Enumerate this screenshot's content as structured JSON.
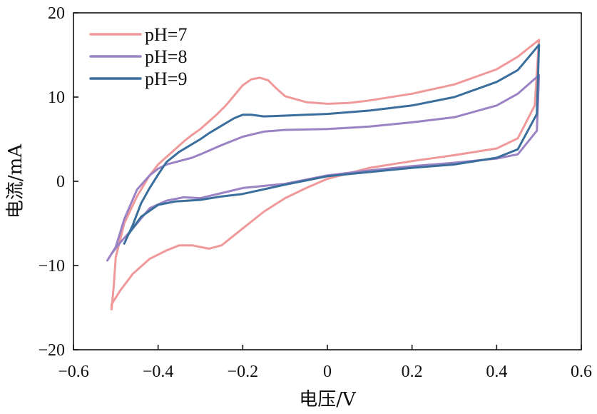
{
  "chart_data": {
    "type": "line",
    "xlabel": "电压/V",
    "ylabel": "电流/mA",
    "xlim": [
      -0.6,
      0.6
    ],
    "ylim": [
      -20,
      20
    ],
    "xticks": [
      -0.6,
      -0.4,
      -0.2,
      0,
      0.2,
      0.4,
      0.6
    ],
    "xtick_labels": [
      "−0.6",
      "−0.4",
      "−0.2",
      "0",
      "0.2",
      "0.4",
      "0.6"
    ],
    "yticks": [
      -20,
      -10,
      0,
      10,
      20
    ],
    "ytick_labels": [
      "−20",
      "−10",
      "0",
      "10",
      "20"
    ],
    "grid": false,
    "legend_position": "top-left",
    "series": [
      {
        "name": "pH=7",
        "color": "#F0999A",
        "x": [
          -0.51,
          -0.505,
          -0.5,
          -0.48,
          -0.45,
          -0.42,
          -0.4,
          -0.38,
          -0.36,
          -0.34,
          -0.32,
          -0.3,
          -0.28,
          -0.26,
          -0.24,
          -0.22,
          -0.2,
          -0.18,
          -0.16,
          -0.14,
          -0.12,
          -0.1,
          -0.05,
          0.0,
          0.05,
          0.1,
          0.2,
          0.3,
          0.4,
          0.45,
          0.5,
          0.49,
          0.45,
          0.4,
          0.3,
          0.2,
          0.1,
          0.0,
          -0.05,
          -0.1,
          -0.15,
          -0.2,
          -0.25,
          -0.28,
          -0.3,
          -0.32,
          -0.35,
          -0.38,
          -0.42,
          -0.46,
          -0.49,
          -0.51,
          -0.51
        ],
        "y": [
          -15.2,
          -12.5,
          -9.0,
          -5.0,
          -1.8,
          0.7,
          2.0,
          2.9,
          3.8,
          4.7,
          5.5,
          6.2,
          7.1,
          8.0,
          9.0,
          10.2,
          11.4,
          12.1,
          12.3,
          12.0,
          11.0,
          10.1,
          9.4,
          9.2,
          9.3,
          9.6,
          10.4,
          11.5,
          13.3,
          14.8,
          16.8,
          9.0,
          5.1,
          3.9,
          3.1,
          2.4,
          1.6,
          0.3,
          -0.8,
          -2.0,
          -3.6,
          -5.6,
          -7.6,
          -8.0,
          -7.8,
          -7.6,
          -7.6,
          -8.2,
          -9.2,
          -11.0,
          -13.0,
          -14.6,
          -15.2
        ]
      },
      {
        "name": "pH=8",
        "color": "#9A82C4",
        "x": [
          -0.52,
          -0.5,
          -0.48,
          -0.45,
          -0.42,
          -0.4,
          -0.38,
          -0.35,
          -0.32,
          -0.3,
          -0.25,
          -0.2,
          -0.15,
          -0.1,
          0.0,
          0.1,
          0.2,
          0.3,
          0.4,
          0.45,
          0.5,
          0.495,
          0.45,
          0.4,
          0.3,
          0.2,
          0.1,
          0.0,
          -0.1,
          -0.2,
          -0.25,
          -0.3,
          -0.34,
          -0.38,
          -0.42,
          -0.46,
          -0.49,
          -0.51,
          -0.52
        ],
        "y": [
          -9.4,
          -7.8,
          -4.5,
          -1.0,
          0.7,
          1.5,
          2.0,
          2.4,
          2.8,
          3.2,
          4.3,
          5.3,
          5.9,
          6.1,
          6.2,
          6.5,
          7.0,
          7.6,
          9.0,
          10.4,
          12.6,
          6.0,
          3.2,
          2.7,
          2.2,
          1.8,
          1.3,
          0.7,
          -0.3,
          -0.8,
          -1.4,
          -2.0,
          -1.9,
          -2.3,
          -3.2,
          -5.6,
          -7.3,
          -8.6,
          -9.4
        ]
      },
      {
        "name": "pH=9",
        "color": "#3A6E9C",
        "x": [
          -0.48,
          -0.46,
          -0.44,
          -0.42,
          -0.4,
          -0.38,
          -0.35,
          -0.32,
          -0.3,
          -0.28,
          -0.25,
          -0.22,
          -0.2,
          -0.18,
          -0.15,
          -0.1,
          -0.05,
          0.0,
          0.1,
          0.2,
          0.3,
          0.4,
          0.45,
          0.5,
          0.495,
          0.45,
          0.4,
          0.3,
          0.2,
          0.1,
          0.0,
          -0.1,
          -0.2,
          -0.25,
          -0.3,
          -0.33,
          -0.36,
          -0.4,
          -0.44,
          -0.47,
          -0.48
        ],
        "y": [
          -7.4,
          -5.2,
          -2.6,
          -0.8,
          0.8,
          2.3,
          3.5,
          4.4,
          5.0,
          5.7,
          6.6,
          7.5,
          7.9,
          7.9,
          7.7,
          7.8,
          7.9,
          8.0,
          8.4,
          9.0,
          10.0,
          11.8,
          13.2,
          16.2,
          8.0,
          3.8,
          2.8,
          2.0,
          1.6,
          1.1,
          0.6,
          -0.4,
          -1.5,
          -1.8,
          -2.2,
          -2.3,
          -2.4,
          -2.8,
          -4.2,
          -6.3,
          -7.4
        ]
      }
    ]
  }
}
